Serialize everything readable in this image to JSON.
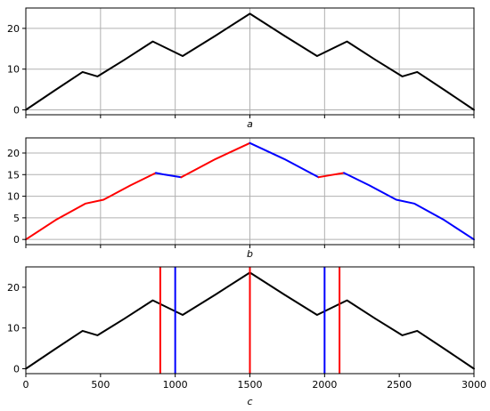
{
  "chart_data": [
    {
      "type": "line",
      "xlabel": "a",
      "xlim": [
        0,
        3000
      ],
      "ylim": [
        -1.2,
        25
      ],
      "x_ticks": [
        0,
        500,
        1000,
        1500,
        2000,
        2500,
        3000
      ],
      "show_x_tick_labels": false,
      "y_ticks": [
        0,
        10,
        20
      ],
      "grid": true,
      "series": [
        {
          "color": "#000000",
          "x": [
            0,
            190,
            380,
            480,
            660,
            850,
            1050,
            1270,
            1500,
            1730,
            1950,
            2150,
            2340,
            2520,
            2620,
            2810,
            3000
          ],
          "y": [
            0,
            4.7,
            9.3,
            8.2,
            12.3,
            16.8,
            13.2,
            18.2,
            23.6,
            18.2,
            13.2,
            16.8,
            12.3,
            8.2,
            9.3,
            4.7,
            0
          ]
        }
      ]
    },
    {
      "type": "line",
      "xlabel": "b",
      "xlim": [
        0,
        3000
      ],
      "ylim": [
        -1.2,
        23.5
      ],
      "x_ticks": [
        0,
        500,
        1000,
        1500,
        2000,
        2500,
        3000
      ],
      "show_x_tick_labels": false,
      "y_ticks": [
        0,
        5,
        10,
        15,
        20
      ],
      "grid": true,
      "series": [
        {
          "color": "#ff0000",
          "x": [
            0,
            200,
            400,
            520,
            700,
            870
          ],
          "y": [
            0,
            4.5,
            8.3,
            9.2,
            12.5,
            15.4
          ]
        },
        {
          "color": "#0000ff",
          "x": [
            870,
            930,
            1040
          ],
          "y": [
            15.4,
            15.0,
            14.4
          ]
        },
        {
          "color": "#ff0000",
          "x": [
            1040,
            1270,
            1500
          ],
          "y": [
            14.4,
            18.6,
            22.3
          ]
        },
        {
          "color": "#0000ff",
          "x": [
            1500,
            1730,
            1960
          ],
          "y": [
            22.3,
            18.6,
            14.4
          ]
        },
        {
          "color": "#ff0000",
          "x": [
            1960,
            2060,
            2130
          ],
          "y": [
            14.4,
            15.0,
            15.4
          ]
        },
        {
          "color": "#0000ff",
          "x": [
            2130,
            2300,
            2480,
            2600,
            2800,
            3000
          ],
          "y": [
            15.4,
            12.5,
            9.2,
            8.3,
            4.5,
            0
          ]
        }
      ]
    },
    {
      "type": "line",
      "xlabel": "c",
      "xlim": [
        0,
        3000
      ],
      "ylim": [
        -1.2,
        25
      ],
      "x_ticks": [
        0,
        500,
        1000,
        1500,
        2000,
        2500,
        3000
      ],
      "show_x_tick_labels": true,
      "y_ticks": [
        0,
        10,
        20
      ],
      "grid": false,
      "series": [
        {
          "color": "#000000",
          "x": [
            0,
            190,
            380,
            480,
            660,
            850,
            1050,
            1270,
            1500,
            1730,
            1950,
            2150,
            2340,
            2520,
            2620,
            2810,
            3000
          ],
          "y": [
            0,
            4.7,
            9.3,
            8.2,
            12.3,
            16.8,
            13.2,
            18.2,
            23.6,
            18.2,
            13.2,
            16.8,
            12.3,
            8.2,
            9.3,
            4.7,
            0
          ]
        }
      ],
      "vlines": [
        {
          "x": 900,
          "color": "#ff0000"
        },
        {
          "x": 1000,
          "color": "#0000ff"
        },
        {
          "x": 1500,
          "color": "#ff0000"
        },
        {
          "x": 2000,
          "color": "#0000ff"
        },
        {
          "x": 2100,
          "color": "#ff0000"
        }
      ]
    }
  ]
}
